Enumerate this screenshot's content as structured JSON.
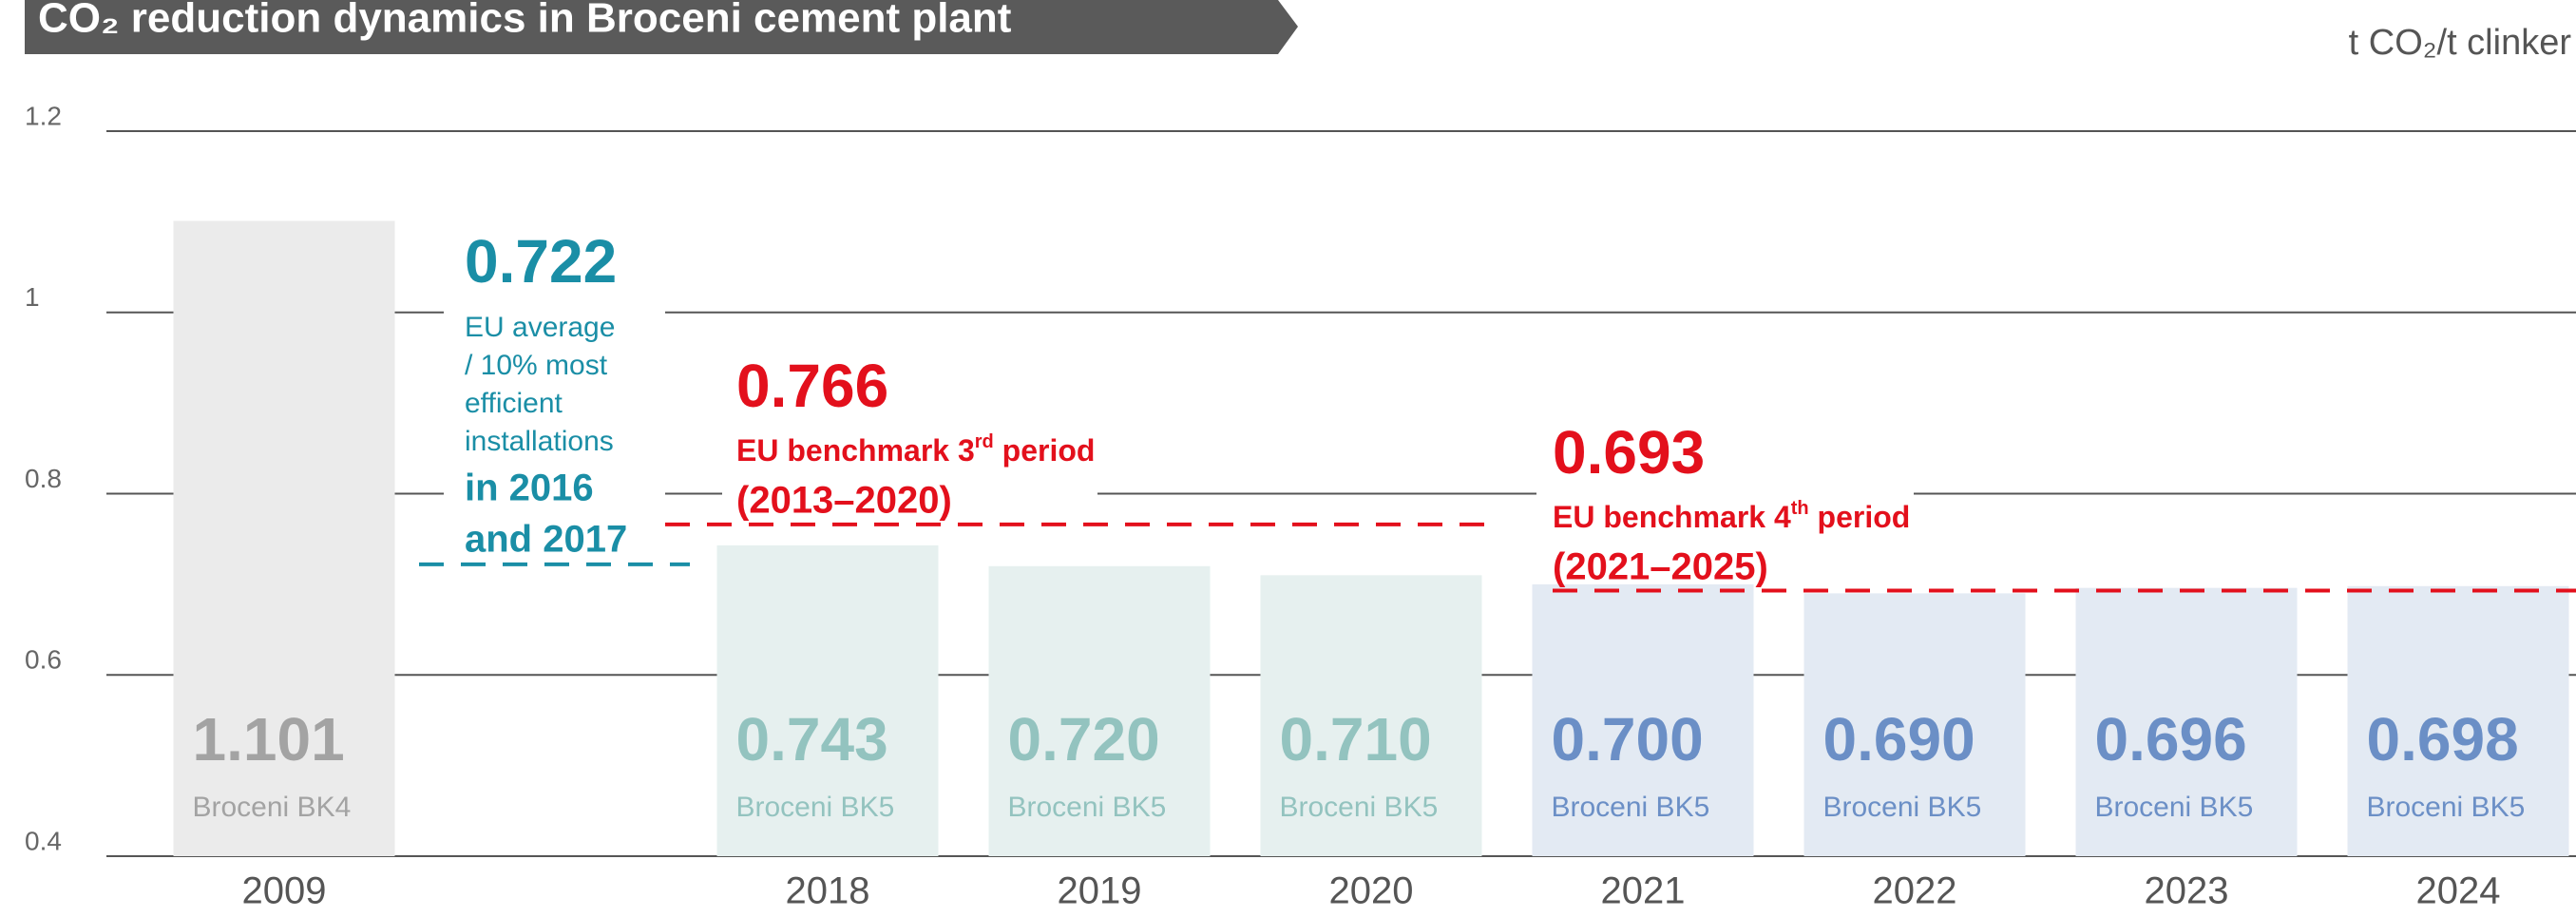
{
  "chart_data": {
    "type": "bar",
    "title": "CO₂ reduction dynamics in Broceni cement plant",
    "unit": "t CO₂/t clinker",
    "categories": [
      "2009",
      null,
      "2018",
      "2019",
      "2020",
      "2021",
      "2022",
      "2023",
      "2024"
    ],
    "values": [
      1.101,
      null,
      0.743,
      0.72,
      0.71,
      0.7,
      0.69,
      0.696,
      0.698
    ],
    "value_labels": [
      "1.101",
      null,
      "0.743",
      "0.720",
      "0.710",
      "0.700",
      "0.690",
      "0.696",
      "0.698"
    ],
    "sublabels": [
      "Broceni BK4",
      null,
      "Broceni BK5",
      "Broceni BK5",
      "Broceni BK5",
      "Broceni BK5",
      "Broceni BK5",
      "Broceni BK5",
      "Broceni BK5"
    ],
    "colors": [
      "#ebebeb",
      null,
      "#e6f0ef",
      "#e6f0ef",
      "#e6f0ef",
      "#e3eaf3",
      "#e3eaf3",
      "#e3eaf3",
      "#e3eaf3"
    ],
    "label_colors": [
      "#a3a3a3",
      null,
      "#93c3bf",
      "#93c3bf",
      "#93c3bf",
      "#6b8fc6",
      "#6b8fc6",
      "#6b8fc6",
      "#6b8fc6"
    ],
    "ylim": [
      0.4,
      1.2
    ],
    "yticks": [
      1.2,
      1,
      0.8,
      0.6,
      0.4
    ],
    "grid": true,
    "reference_lines": [
      {
        "value": 0.722,
        "color": "#1a8ea6",
        "text": [
          "EU average",
          "/ 10% most",
          "efficient",
          "installations"
        ],
        "highlight": [
          "in 2016",
          "and 2017"
        ]
      },
      {
        "value": 0.766,
        "color": "#e3101c",
        "highlight": [
          [
            "EU benchmark 3",
            "rd",
            " period"
          ],
          "(2013–2020)"
        ]
      },
      {
        "value": 0.693,
        "color": "#e3101c",
        "highlight": [
          [
            "EU benchmark 4",
            "th",
            " period"
          ],
          "(2021–2025)"
        ]
      }
    ]
  }
}
